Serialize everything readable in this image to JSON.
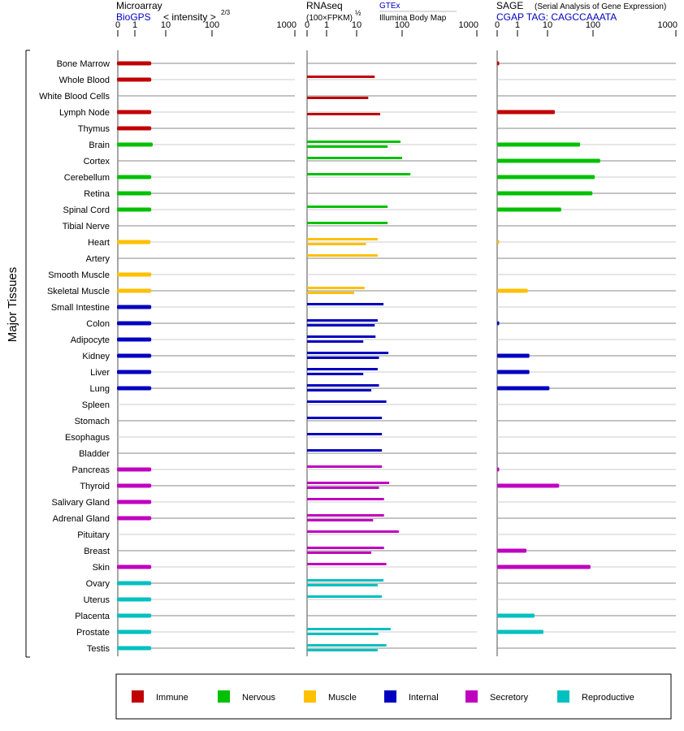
{
  "chart_data": {
    "type": "bar",
    "ylabel": "Major Tissues",
    "panels": [
      {
        "key": "micro",
        "title": "Microarray",
        "source": "BioGPS",
        "scale_label": "< intensity >",
        "scale_exp": "2/3",
        "ticks": [
          0,
          1,
          10,
          100,
          1000
        ],
        "tick_labels": [
          "0",
          "1",
          "10",
          "100",
          "1000"
        ]
      },
      {
        "key": "rnaseq",
        "title": "RNAseq",
        "scale_label": "(100×FPKM)",
        "scale_exp": "½",
        "source_upper": "GTEx",
        "source_lower": "Illumina Body Map",
        "ticks": [
          0,
          1,
          10,
          100,
          1000
        ],
        "tick_labels": [
          "0",
          "1",
          "10",
          "100",
          "1000"
        ]
      },
      {
        "key": "sage",
        "title": "SAGE",
        "subtitle": "(Serial Analysis of Gene Expression)",
        "source": "CGAP TAG: CAGCCAAATA",
        "ticks": [
          0,
          1,
          10,
          100,
          1000
        ],
        "tick_labels": [
          "0",
          "1",
          "10",
          "100",
          "1000"
        ]
      }
    ],
    "groups": [
      {
        "name": "Immune",
        "color": "#c00000"
      },
      {
        "name": "Nervous",
        "color": "#00c000"
      },
      {
        "name": "Muscle",
        "color": "#ffc000"
      },
      {
        "name": "Internal",
        "color": "#0000c0"
      },
      {
        "name": "Secretory",
        "color": "#c000c0"
      },
      {
        "name": "Reproductive",
        "color": "#00c0c0"
      }
    ],
    "legend_position": "bottom",
    "rows": [
      {
        "tissue": "Bone Marrow",
        "group": 0,
        "micro": 3.4,
        "gtex": null,
        "illumina": null,
        "sage": 0.1
      },
      {
        "tissue": "Whole Blood",
        "group": 0,
        "micro": 3.4,
        "gtex": 25,
        "illumina": null,
        "sage": null
      },
      {
        "tissue": "White Blood Cells",
        "group": 0,
        "micro": null,
        "gtex": null,
        "illumina": 18,
        "sage": null
      },
      {
        "tissue": "Lymph Node",
        "group": 0,
        "micro": 3.4,
        "gtex": null,
        "illumina": 33,
        "sage": 14.5
      },
      {
        "tissue": "Thymus",
        "group": 0,
        "micro": 3.4,
        "gtex": null,
        "illumina": null,
        "sage": null
      },
      {
        "tissue": "Brain",
        "group": 1,
        "micro": 3.8,
        "gtex": 92,
        "illumina": 48,
        "sage": 52
      },
      {
        "tissue": "Cortex",
        "group": 1,
        "micro": null,
        "gtex": 100,
        "illumina": null,
        "sage": 122
      },
      {
        "tissue": "Cerebellum",
        "group": 1,
        "micro": 3.4,
        "gtex": 129,
        "illumina": null,
        "sage": 105
      },
      {
        "tissue": "Retina",
        "group": 1,
        "micro": 3.4,
        "gtex": null,
        "illumina": null,
        "sage": 97
      },
      {
        "tissue": "Spinal Cord",
        "group": 1,
        "micro": 3.4,
        "gtex": 48,
        "illumina": null,
        "sage": 20
      },
      {
        "tissue": "Tibial Nerve",
        "group": 1,
        "micro": null,
        "gtex": 48,
        "illumina": null,
        "sage": null
      },
      {
        "tissue": "Heart",
        "group": 2,
        "micro": 3.2,
        "gtex": 29,
        "illumina": 16,
        "sage": 0.1
      },
      {
        "tissue": "Artery",
        "group": 2,
        "micro": null,
        "gtex": 29,
        "illumina": null,
        "sage": null
      },
      {
        "tissue": "Smooth Muscle",
        "group": 2,
        "micro": 3.4,
        "gtex": null,
        "illumina": null,
        "sage": null
      },
      {
        "tissue": "Skeletal Muscle",
        "group": 2,
        "micro": 3.4,
        "gtex": 15,
        "illumina": 8.3,
        "sage": 2.2
      },
      {
        "tissue": "Small Intestine",
        "group": 3,
        "micro": 3.4,
        "gtex": 39,
        "illumina": null,
        "sage": null
      },
      {
        "tissue": "Colon",
        "group": 3,
        "micro": 3.4,
        "gtex": 29,
        "illumina": 25,
        "sage": 0.1
      },
      {
        "tissue": "Adipocyte",
        "group": 3,
        "micro": 3.4,
        "gtex": 26,
        "illumina": 14,
        "sage": null
      },
      {
        "tissue": "Kidney",
        "group": 3,
        "micro": 3.4,
        "gtex": 50,
        "illumina": 31,
        "sage": 2.5
      },
      {
        "tissue": "Liver",
        "group": 3,
        "micro": 3.4,
        "gtex": 29,
        "illumina": 14,
        "sage": 2.5
      },
      {
        "tissue": "Lung",
        "group": 3,
        "micro": 3.4,
        "gtex": 31,
        "illumina": 21,
        "sage": 11
      },
      {
        "tissue": "Spleen",
        "group": 3,
        "micro": null,
        "gtex": 45,
        "illumina": null,
        "sage": null
      },
      {
        "tissue": "Stomach",
        "group": 3,
        "micro": null,
        "gtex": 36,
        "illumina": null,
        "sage": null
      },
      {
        "tissue": "Esophagus",
        "group": 3,
        "micro": null,
        "gtex": 36,
        "illumina": null,
        "sage": null
      },
      {
        "tissue": "Bladder",
        "group": 3,
        "micro": null,
        "gtex": 36,
        "illumina": null,
        "sage": null
      },
      {
        "tissue": "Pancreas",
        "group": 4,
        "micro": 3.4,
        "gtex": 36,
        "illumina": null,
        "sage": 0.1
      },
      {
        "tissue": "Thyroid",
        "group": 4,
        "micro": 3.4,
        "gtex": 52,
        "illumina": 31,
        "sage": 18
      },
      {
        "tissue": "Salivary Gland",
        "group": 4,
        "micro": 3.4,
        "gtex": 40,
        "illumina": null,
        "sage": null
      },
      {
        "tissue": "Adrenal Gland",
        "group": 4,
        "micro": 3.4,
        "gtex": 40,
        "illumina": 23,
        "sage": null
      },
      {
        "tissue": "Pituitary",
        "group": 4,
        "micro": null,
        "gtex": 85,
        "illumina": null,
        "sage": null
      },
      {
        "tissue": "Breast",
        "group": 4,
        "micro": null,
        "gtex": 40,
        "illumina": 21,
        "sage": 2.0
      },
      {
        "tissue": "Skin",
        "group": 4,
        "micro": 3.4,
        "gtex": 45,
        "illumina": null,
        "sage": 88
      },
      {
        "tissue": "Ovary",
        "group": 5,
        "micro": 3.4,
        "gtex": 39,
        "illumina": 29,
        "sage": null
      },
      {
        "tissue": "Uterus",
        "group": 5,
        "micro": 3.4,
        "gtex": 36,
        "illumina": null,
        "sage": null
      },
      {
        "tissue": "Placenta",
        "group": 5,
        "micro": 3.4,
        "gtex": null,
        "illumina": null,
        "sage": 3.7
      },
      {
        "tissue": "Prostate",
        "group": 5,
        "micro": 3.4,
        "gtex": 56,
        "illumina": 30,
        "sage": 7.3
      },
      {
        "tissue": "Testis",
        "group": 5,
        "micro": 3.4,
        "gtex": 45,
        "illumina": 29,
        "sage": null
      }
    ]
  }
}
